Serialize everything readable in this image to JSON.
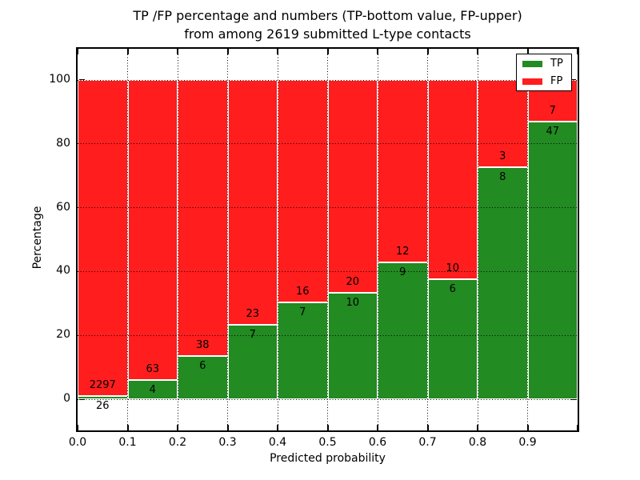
{
  "figure": {
    "title_line1": "TP /FP percentage and numbers (TP-bottom value, FP-upper)",
    "title_line2": "from among 2619 submitted L-type contacts",
    "xlabel": "Predicted probability",
    "ylabel": "Percentage"
  },
  "legend": {
    "items": [
      {
        "label": "TP",
        "color": "#228b22"
      },
      {
        "label": "FP",
        "color": "#ff1d1d"
      }
    ]
  },
  "axes": {
    "xtick_labels": [
      "0.0",
      "0.1",
      "0.2",
      "0.3",
      "0.4",
      "0.5",
      "0.6",
      "0.7",
      "0.8",
      "0.9"
    ],
    "ytick_labels": [
      "0",
      "20",
      "40",
      "60",
      "80",
      "100"
    ],
    "ytick_values": [
      0,
      20,
      40,
      60,
      80,
      100
    ]
  },
  "chart_data": {
    "type": "bar",
    "stacked": true,
    "normalized": "percent-of-bin",
    "title": "TP /FP percentage and numbers (TP-bottom value, FP-upper) from among 2619 submitted L-type contacts",
    "xlabel": "Predicted probability",
    "ylabel": "Percentage",
    "total_contacts": 2619,
    "bin_edges": [
      0.0,
      0.1,
      0.2,
      0.3,
      0.4,
      0.5,
      0.6,
      0.7,
      0.8,
      0.9,
      1.0
    ],
    "categories": [
      "0.0-0.1",
      "0.1-0.2",
      "0.2-0.3",
      "0.3-0.4",
      "0.4-0.5",
      "0.5-0.6",
      "0.6-0.7",
      "0.7-0.8",
      "0.8-0.9",
      "0.9-1.0"
    ],
    "series": [
      {
        "name": "TP",
        "color": "#228b22",
        "counts": [
          26,
          4,
          6,
          7,
          7,
          10,
          9,
          6,
          8,
          47
        ]
      },
      {
        "name": "FP",
        "color": "#ff1d1d",
        "counts": [
          2297,
          63,
          38,
          23,
          16,
          20,
          12,
          10,
          3,
          7
        ]
      }
    ],
    "tp_percent": [
      1.1,
      6.0,
      13.6,
      23.3,
      30.4,
      33.3,
      42.9,
      37.5,
      72.7,
      87.0
    ],
    "ylim": [
      -10,
      110
    ],
    "yticks": [
      0,
      20,
      40,
      60,
      80,
      100
    ],
    "grid": "dotted",
    "legend_position": "upper right",
    "bar_edge_color": "#ffffff"
  }
}
